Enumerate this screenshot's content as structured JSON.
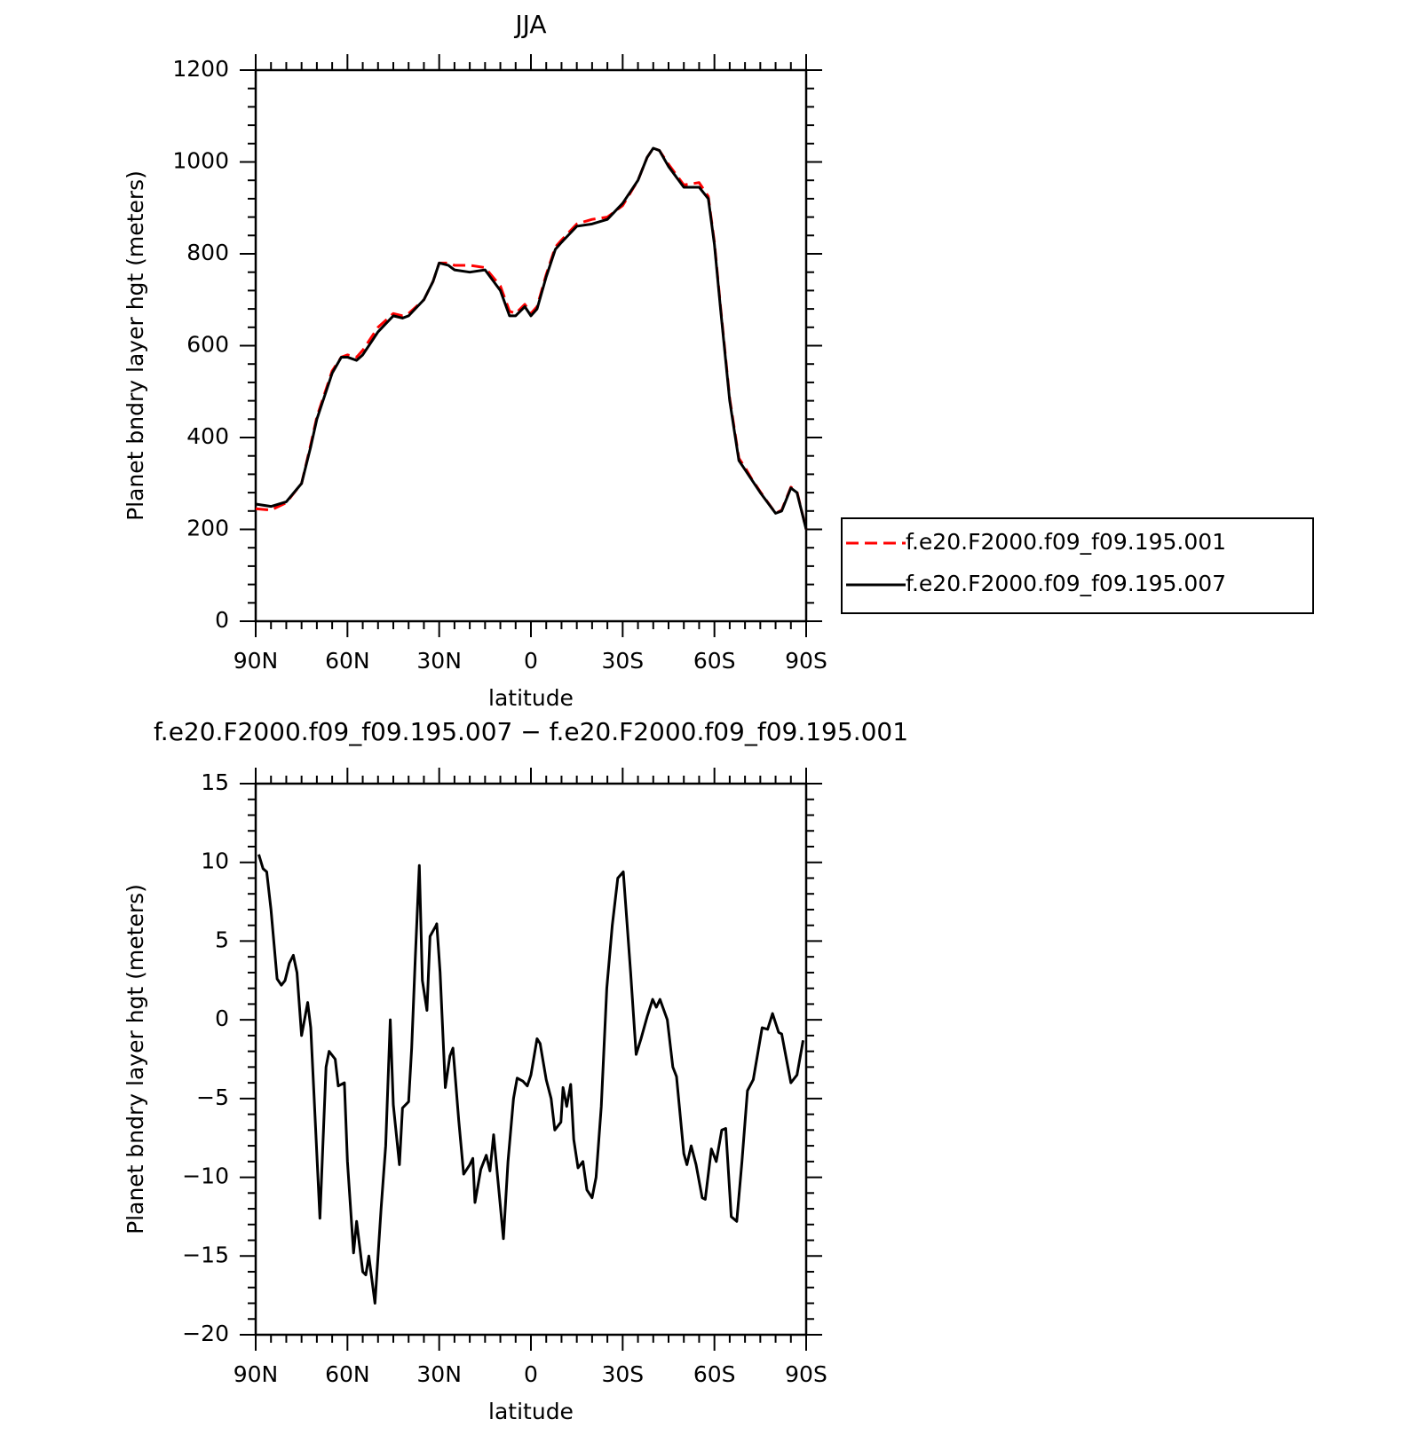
{
  "chart_data": [
    {
      "type": "line",
      "title": "JJA",
      "xlabel": "latitude",
      "ylabel": "Planet bndry layer hgt (meters)",
      "xlim": [
        90,
        -90
      ],
      "xticks": [
        {
          "value": 90,
          "label": "90N"
        },
        {
          "value": 60,
          "label": "60N"
        },
        {
          "value": 30,
          "label": "30N"
        },
        0,
        {
          "value": -30,
          "label": "30S"
        },
        {
          "value": -60,
          "label": "60S"
        },
        {
          "value": -90,
          "label": "90S"
        }
      ],
      "ylim": [
        0,
        1200
      ],
      "yticks": [
        0,
        200,
        400,
        600,
        800,
        1000,
        1200
      ],
      "legend": "outside-right",
      "x": [
        90,
        85,
        80,
        75,
        72,
        70,
        65,
        62,
        60,
        57,
        55,
        50,
        45,
        42,
        40,
        35,
        32,
        30,
        27,
        25,
        20,
        15,
        10,
        7,
        5,
        2,
        0,
        -2,
        -5,
        -8,
        -10,
        -15,
        -20,
        -25,
        -30,
        -35,
        -38,
        -40,
        -42,
        -45,
        -50,
        -55,
        -58,
        -60,
        -62,
        -65,
        -68,
        -70,
        -72,
        -75,
        -80,
        -82,
        -85,
        -87,
        -90
      ],
      "series": [
        {
          "name": "f.e20.F2000.f09_f09.195.001",
          "color": "#ff0000",
          "line_style": "dashed",
          "values": [
            245,
            242,
            258,
            300,
            385,
            445,
            545,
            575,
            580,
            575,
            590,
            640,
            670,
            665,
            670,
            700,
            740,
            780,
            780,
            775,
            775,
            770,
            730,
            675,
            670,
            690,
            670,
            685,
            755,
            815,
            830,
            865,
            875,
            880,
            905,
            960,
            1010,
            1030,
            1025,
            995,
            950,
            955,
            925,
            825,
            685,
            485,
            355,
            335,
            312,
            282,
            235,
            242,
            292,
            282,
            200
          ]
        },
        {
          "name": "f.e20.F2000.f09_f09.195.007",
          "color": "#000000",
          "line_style": "solid",
          "values": [
            255,
            250,
            260,
            300,
            380,
            440,
            540,
            575,
            575,
            568,
            580,
            630,
            665,
            660,
            665,
            700,
            740,
            780,
            775,
            765,
            760,
            765,
            720,
            665,
            665,
            685,
            665,
            680,
            750,
            810,
            825,
            860,
            865,
            875,
            910,
            960,
            1010,
            1030,
            1025,
            990,
            945,
            945,
            920,
            820,
            680,
            480,
            350,
            330,
            310,
            280,
            235,
            240,
            290,
            280,
            200
          ]
        }
      ]
    },
    {
      "type": "line",
      "title": "f.e20.F2000.f09_f09.195.007 − f.e20.F2000.f09_f09.195.001",
      "xlabel": "latitude",
      "ylabel": "Planet bndry layer hgt (meters)",
      "xlim": [
        90,
        -90
      ],
      "xticks": [
        {
          "value": 90,
          "label": "90N"
        },
        {
          "value": 60,
          "label": "60N"
        },
        {
          "value": 30,
          "label": "30N"
        },
        0,
        {
          "value": -30,
          "label": "30S"
        },
        {
          "value": -60,
          "label": "60S"
        },
        {
          "value": -90,
          "label": "90S"
        }
      ],
      "ylim": [
        -20,
        15
      ],
      "yticks": [
        {
          "value": -20,
          "label": "−20"
        },
        {
          "value": -15,
          "label": "−15"
        },
        {
          "value": -10,
          "label": "−10"
        },
        {
          "value": -5,
          "label": "−5"
        },
        0,
        5,
        10,
        15
      ],
      "color": "#000000",
      "x": [
        89,
        87.6,
        86.4,
        85,
        83,
        81.6,
        80.4,
        79,
        77.7,
        76.5,
        75,
        73,
        72,
        71,
        69,
        67,
        66,
        64,
        63,
        61,
        60,
        58,
        57,
        55,
        54,
        53,
        51,
        49,
        47.5,
        46,
        45,
        43,
        42,
        40,
        39,
        37.8,
        36.5,
        35.5,
        34,
        33,
        31,
        30.8,
        29.7,
        28,
        26.5,
        25.5,
        23.6,
        22,
        20,
        19,
        18.3,
        16.4,
        14.6,
        13.4,
        12.2,
        10.4,
        9,
        7.5,
        5.7,
        4.5,
        2.6,
        1.2,
        0,
        -2,
        -3,
        -5,
        -6.6,
        -7.8,
        -9.8,
        -10.5,
        -11.7,
        -13,
        -14,
        -15.4,
        -17,
        -18.3,
        -20,
        -21.3,
        -23,
        -24.8,
        -26.6,
        -28.4,
        -30.2,
        -32.6,
        -34.4,
        -36,
        -38,
        -39.8,
        -41,
        -42.2,
        -44.6,
        -46.4,
        -47.6,
        -50,
        -51,
        -52.4,
        -54,
        -56,
        -57,
        -59,
        -60.6,
        -62.4,
        -63.7,
        -65.5,
        -67.3,
        -69,
        -70.8,
        -72.7,
        -75.6,
        -77.4,
        -79,
        -81,
        -82,
        -85,
        -87,
        -89
      ],
      "values": [
        10.5,
        9.6,
        9.4,
        7,
        2.6,
        2.2,
        2.5,
        3.6,
        4.1,
        3,
        -1,
        1.1,
        -0.5,
        -4.5,
        -12.6,
        -3,
        -2,
        -2.5,
        -4.2,
        -4,
        -9,
        -14.8,
        -12.8,
        -16,
        -16.2,
        -15,
        -18,
        -12,
        -8,
        0,
        -5.4,
        -9.2,
        -5.6,
        -5.2,
        -1.8,
        4,
        9.8,
        2.5,
        0.6,
        5.3,
        6,
        6.1,
        3,
        -4.3,
        -2.3,
        -1.8,
        -6.4,
        -9.8,
        -9.2,
        -8.8,
        -11.6,
        -9.5,
        -8.6,
        -9.6,
        -7.3,
        -11,
        -13.9,
        -9,
        -5,
        -3.7,
        -3.9,
        -4.2,
        -3.5,
        -1.2,
        -1.5,
        -3.8,
        -5,
        -7,
        -6.5,
        -4.3,
        -5.5,
        -4.1,
        -7.6,
        -9.4,
        -9,
        -10.8,
        -11.3,
        -10,
        -5.5,
        2,
        6,
        9,
        9.4,
        3,
        -2.2,
        -1.2,
        0.2,
        1.3,
        0.8,
        1.3,
        0,
        -3,
        -3.6,
        -8.5,
        -9.2,
        -8,
        -9.2,
        -11.3,
        -11.4,
        -8.2,
        -9,
        -7,
        -6.9,
        -12.5,
        -12.8,
        -9,
        -4.5,
        -3.8,
        -0.5,
        -0.6,
        0.4,
        -0.8,
        -0.9,
        -4,
        -3.5,
        -1.3
      ]
    }
  ]
}
